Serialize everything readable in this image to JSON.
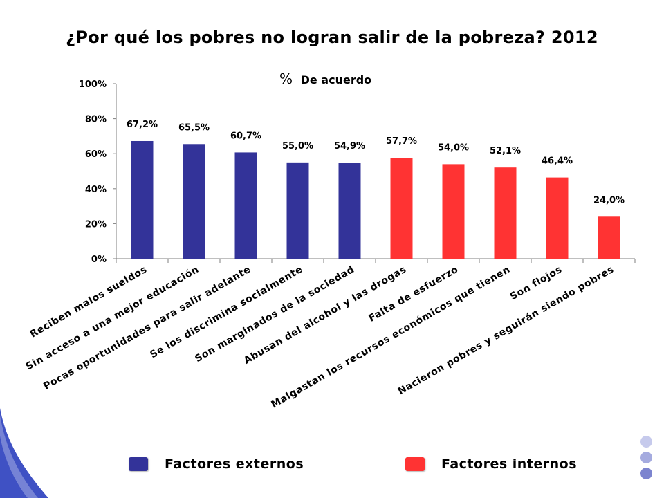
{
  "title": "¿Por qué los pobres no logran salir de la pobreza? 2012",
  "colors": {
    "externos": "#333399",
    "internos": "#FF3333",
    "dot1": "#C6CAEC",
    "dot2": "#A5ABDF",
    "dot3": "#7C84CF"
  },
  "legend": [
    {
      "label": "Factores externos",
      "color": "#333399"
    },
    {
      "label": "Factores internos",
      "color": "#FF3333"
    }
  ],
  "chart_data": {
    "type": "bar",
    "title": "¿Por qué los pobres no logran salir de la pobreza? 2012",
    "subtitle_symbol": "%",
    "subtitle_text": "De acuerdo",
    "ylim": [
      0,
      100
    ],
    "yticks": [
      "0%",
      "20%",
      "40%",
      "60%",
      "80%",
      "100%"
    ],
    "categories": [
      "Reciben malos sueldos",
      "Sin acceso a una mejor educación",
      "Pocas oportunidades para salir adelante",
      "Se los discrimina socialmente",
      "Son marginados de la sociedad",
      "Abusan del alcohol y las drogas",
      "Falta de esfuerzo",
      "Malgastan los recursos económicos que tienen",
      "Son flojos",
      "Nacieron pobres y seguirán siendo pobres"
    ],
    "values": [
      67.2,
      65.5,
      60.7,
      55.0,
      54.9,
      57.7,
      54.0,
      52.1,
      46.4,
      24.0
    ],
    "value_labels": [
      "67,2%",
      "65,5%",
      "60,7%",
      "55,0%",
      "54,9%",
      "57,7%",
      "54,0%",
      "52,1%",
      "46,4%",
      "24,0%"
    ],
    "groups": [
      "externos",
      "externos",
      "externos",
      "externos",
      "externos",
      "internos",
      "internos",
      "internos",
      "internos",
      "internos"
    ]
  }
}
